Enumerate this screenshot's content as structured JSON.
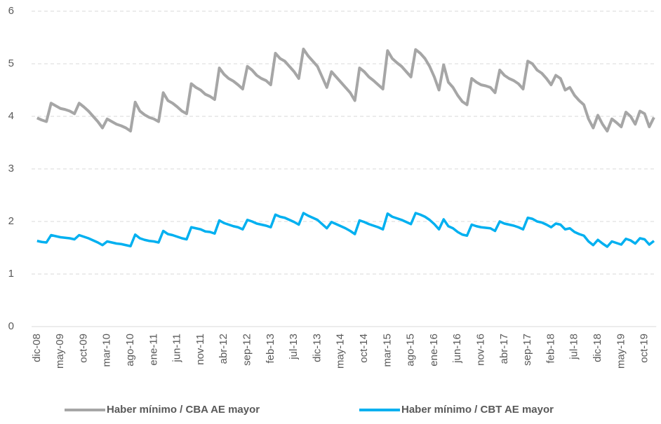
{
  "chart_data": {
    "type": "line",
    "categories": [
      "dic-08",
      null,
      null,
      null,
      null,
      "may-09",
      null,
      null,
      null,
      null,
      "oct-09",
      null,
      null,
      null,
      null,
      "mar-10",
      null,
      null,
      null,
      null,
      "ago-10",
      null,
      null,
      null,
      null,
      "ene-11",
      null,
      null,
      null,
      null,
      "jun-11",
      null,
      null,
      null,
      null,
      "nov-11",
      null,
      null,
      null,
      null,
      "abr-12",
      null,
      null,
      null,
      null,
      "sep-12",
      null,
      null,
      null,
      null,
      "feb-13",
      null,
      null,
      null,
      null,
      "jul-13",
      null,
      null,
      null,
      null,
      "dic-13",
      null,
      null,
      null,
      null,
      "may-14",
      null,
      null,
      null,
      null,
      "oct-14",
      null,
      null,
      null,
      null,
      "mar-15",
      null,
      null,
      null,
      null,
      "ago-15",
      null,
      null,
      null,
      null,
      "ene-16",
      null,
      null,
      null,
      null,
      "jun-16",
      null,
      null,
      null,
      null,
      "nov-16",
      null,
      null,
      null,
      null,
      "abr-17",
      null,
      null,
      null,
      null,
      "sep-17",
      null,
      null,
      null,
      null,
      "feb-18",
      null,
      null,
      null,
      null,
      "jul-18",
      null,
      null,
      null,
      null,
      "dic-18",
      null,
      null,
      null,
      null,
      "may-19",
      null,
      null,
      null,
      null,
      "oct-19",
      null,
      null
    ],
    "series": [
      {
        "name": "Haber mínimo / CBA AE mayor",
        "color": "#a6a6a6",
        "values": [
          3.97,
          3.93,
          3.9,
          4.25,
          4.2,
          4.15,
          4.13,
          4.1,
          4.05,
          4.25,
          4.18,
          4.1,
          4.0,
          3.9,
          3.78,
          3.95,
          3.9,
          3.85,
          3.82,
          3.78,
          3.72,
          4.27,
          4.1,
          4.03,
          3.98,
          3.95,
          3.9,
          4.45,
          4.3,
          4.25,
          4.18,
          4.1,
          4.05,
          4.62,
          4.55,
          4.5,
          4.42,
          4.38,
          4.32,
          4.92,
          4.8,
          4.72,
          4.67,
          4.6,
          4.52,
          4.95,
          4.88,
          4.78,
          4.72,
          4.68,
          4.6,
          5.2,
          5.1,
          5.05,
          4.95,
          4.85,
          4.72,
          5.28,
          5.15,
          5.05,
          4.95,
          4.75,
          4.55,
          4.85,
          4.75,
          4.65,
          4.55,
          4.45,
          4.3,
          4.92,
          4.85,
          4.75,
          4.68,
          4.6,
          4.52,
          5.25,
          5.1,
          5.02,
          4.95,
          4.85,
          4.75,
          5.27,
          5.2,
          5.1,
          4.95,
          4.75,
          4.5,
          4.98,
          4.65,
          4.55,
          4.4,
          4.28,
          4.22,
          4.72,
          4.65,
          4.6,
          4.58,
          4.55,
          4.45,
          4.88,
          4.78,
          4.72,
          4.68,
          4.62,
          4.52,
          5.05,
          5.0,
          4.88,
          4.82,
          4.72,
          4.6,
          4.78,
          4.72,
          4.5,
          4.55,
          4.4,
          4.3,
          4.22,
          3.95,
          3.78,
          4.02,
          3.85,
          3.72,
          3.95,
          3.88,
          3.8,
          4.08,
          4.0,
          3.85,
          4.1,
          4.05,
          3.8,
          3.98
        ]
      },
      {
        "name": "Haber mínimo / CBT AE mayor",
        "color": "#00b0f0",
        "values": [
          1.63,
          1.61,
          1.6,
          1.74,
          1.72,
          1.7,
          1.69,
          1.68,
          1.66,
          1.74,
          1.71,
          1.68,
          1.64,
          1.6,
          1.55,
          1.62,
          1.6,
          1.58,
          1.57,
          1.55,
          1.53,
          1.75,
          1.68,
          1.65,
          1.63,
          1.62,
          1.6,
          1.82,
          1.76,
          1.74,
          1.71,
          1.68,
          1.66,
          1.89,
          1.87,
          1.85,
          1.81,
          1.8,
          1.77,
          2.02,
          1.97,
          1.94,
          1.91,
          1.89,
          1.85,
          2.03,
          2.0,
          1.96,
          1.94,
          1.92,
          1.89,
          2.13,
          2.09,
          2.07,
          2.03,
          1.99,
          1.94,
          2.16,
          2.11,
          2.07,
          2.03,
          1.95,
          1.87,
          1.99,
          1.95,
          1.91,
          1.87,
          1.82,
          1.76,
          2.02,
          1.99,
          1.95,
          1.92,
          1.89,
          1.85,
          2.15,
          2.09,
          2.06,
          2.03,
          1.99,
          1.95,
          2.16,
          2.13,
          2.09,
          2.03,
          1.95,
          1.85,
          2.04,
          1.91,
          1.87,
          1.8,
          1.75,
          1.73,
          1.94,
          1.91,
          1.89,
          1.88,
          1.87,
          1.82,
          2.0,
          1.96,
          1.94,
          1.92,
          1.89,
          1.85,
          2.07,
          2.05,
          2.0,
          1.98,
          1.94,
          1.89,
          1.96,
          1.94,
          1.85,
          1.87,
          1.8,
          1.76,
          1.73,
          1.62,
          1.55,
          1.65,
          1.58,
          1.52,
          1.62,
          1.59,
          1.56,
          1.67,
          1.64,
          1.58,
          1.68,
          1.66,
          1.56,
          1.63
        ]
      }
    ],
    "ylim": [
      0,
      6
    ],
    "yticks": [
      0,
      1,
      2,
      3,
      4,
      5,
      6
    ],
    "grid": true,
    "legend": "bottom"
  }
}
